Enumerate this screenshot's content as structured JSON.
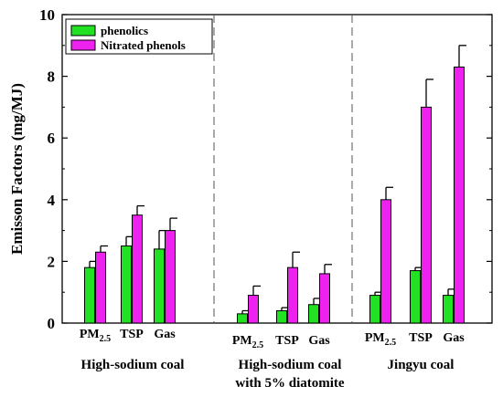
{
  "chart_data": {
    "type": "bar",
    "ylabel": "Emisson Factors (mg/MJ)",
    "ylim": [
      0,
      10
    ],
    "yticks": [
      0,
      2,
      4,
      6,
      8,
      10
    ],
    "grid": false,
    "legend_position": "top-left",
    "groups": [
      {
        "label_lines": [
          "High-sodium coal"
        ],
        "categories": [
          {
            "main": "PM",
            "sub": "2.5"
          },
          {
            "main": "TSP",
            "sub": ""
          },
          {
            "main": "Gas",
            "sub": ""
          }
        ]
      },
      {
        "label_lines": [
          "High-sodium coal",
          "with 5% diatomite"
        ],
        "categories": [
          {
            "main": "PM",
            "sub": "2.5"
          },
          {
            "main": "TSP",
            "sub": ""
          },
          {
            "main": "Gas",
            "sub": ""
          }
        ]
      },
      {
        "label_lines": [
          "Jingyu coal"
        ],
        "categories": [
          {
            "main": "PM",
            "sub": "2.5"
          },
          {
            "main": "TSP",
            "sub": ""
          },
          {
            "main": "Gas",
            "sub": ""
          }
        ]
      }
    ],
    "series": [
      {
        "name": "phenolics",
        "color": "#22e022",
        "values": [
          1.8,
          2.5,
          2.4,
          0.3,
          0.4,
          0.6,
          0.9,
          1.7,
          0.9
        ],
        "errors": [
          0.2,
          0.3,
          0.6,
          0.1,
          0.1,
          0.2,
          0.1,
          0.1,
          0.2
        ]
      },
      {
        "name": "Nitrated phenols",
        "color": "#ee22ee",
        "values": [
          2.3,
          3.5,
          3.0,
          0.9,
          1.8,
          1.6,
          4.0,
          7.0,
          8.3
        ],
        "errors": [
          0.2,
          0.3,
          0.4,
          0.3,
          0.5,
          0.3,
          0.4,
          0.9,
          0.7
        ]
      }
    ]
  }
}
